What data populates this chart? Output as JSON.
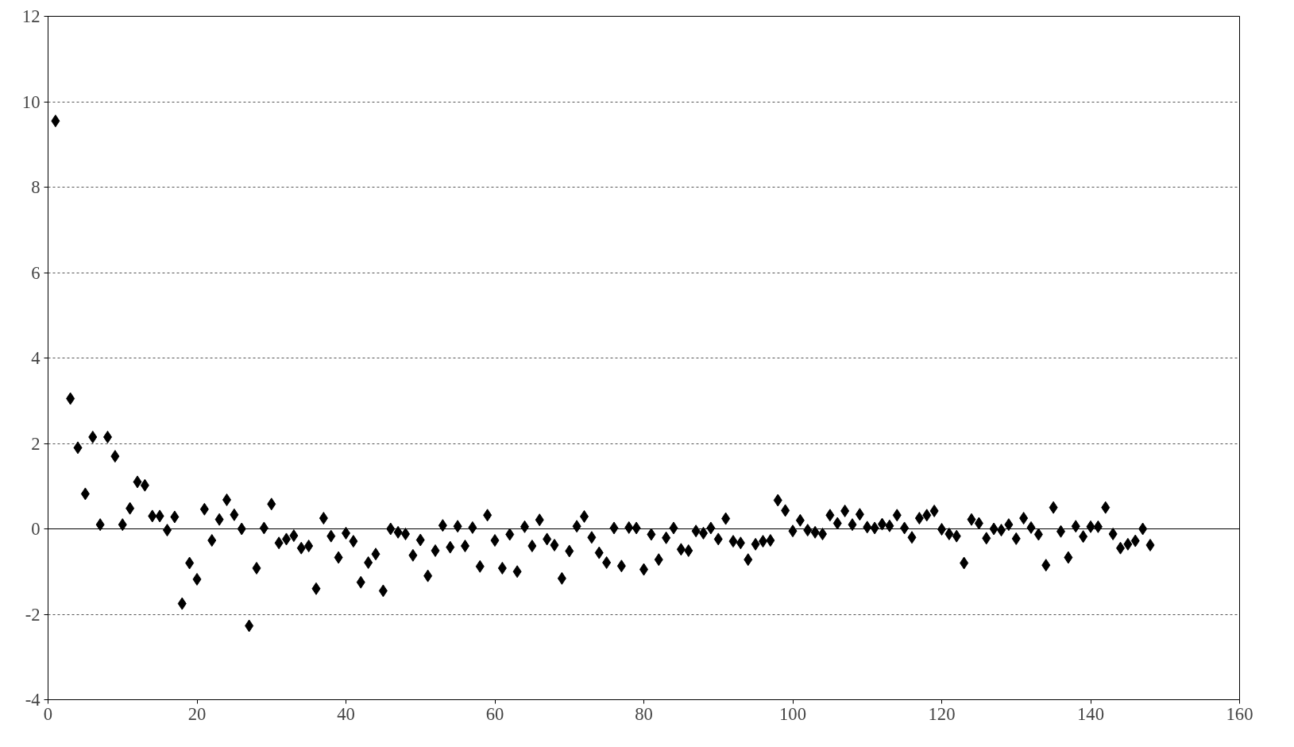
{
  "chart_data": {
    "type": "scatter",
    "marker": "diamond",
    "grid": "y",
    "ref_lines": [
      {
        "axis": "y",
        "value": 0,
        "color": "#000000"
      }
    ],
    "xlim": [
      0,
      160
    ],
    "xticks": [
      0,
      20,
      40,
      60,
      80,
      100,
      120,
      140,
      160
    ],
    "ylim": [
      -4,
      12
    ],
    "yticks": [
      -4,
      -2,
      0,
      2,
      4,
      6,
      8,
      10,
      12
    ],
    "series": [
      {
        "color": "#000000",
        "x": [
          1,
          3,
          4,
          5,
          6,
          7,
          8,
          9,
          10,
          11,
          12,
          13,
          14,
          15,
          16,
          17,
          18,
          19,
          20,
          21,
          22,
          23,
          24,
          25,
          26,
          27,
          28,
          29,
          30,
          31,
          32,
          33,
          34,
          35,
          36,
          37,
          38,
          39,
          40,
          41,
          42,
          43,
          44,
          45,
          46,
          47,
          48,
          49,
          50,
          51,
          52,
          53,
          54,
          55,
          56,
          57,
          58,
          59,
          60,
          61,
          62,
          63,
          64,
          65,
          66,
          67,
          68,
          69,
          70,
          71,
          72,
          73,
          74,
          75,
          76,
          77,
          78,
          79,
          80,
          81,
          82,
          83,
          84,
          85,
          86,
          87,
          88,
          89,
          90,
          91,
          92,
          93,
          94,
          95,
          96,
          97,
          98,
          99,
          100,
          101,
          102,
          103,
          104,
          105,
          106,
          107,
          108,
          109,
          110,
          111,
          112,
          113,
          114,
          115,
          116,
          117,
          118,
          119,
          120,
          121,
          122,
          123,
          124,
          125,
          126,
          127,
          128,
          129,
          130,
          131,
          132,
          133,
          134,
          135,
          136,
          137,
          138,
          139,
          140,
          141,
          142,
          143,
          144,
          145,
          146,
          147,
          148
        ],
        "values": [
          9.55,
          3.05,
          1.9,
          0.82,
          2.15,
          0.1,
          2.15,
          1.7,
          0.1,
          0.48,
          1.1,
          1.02,
          0.3,
          0.3,
          -0.03,
          0.28,
          -1.75,
          -0.8,
          -1.18,
          0.46,
          -0.27,
          0.22,
          0.68,
          0.33,
          0.0,
          -2.27,
          -0.92,
          0.02,
          0.58,
          -0.33,
          -0.24,
          -0.16,
          -0.45,
          -0.4,
          -1.4,
          0.25,
          -0.17,
          -0.67,
          -0.1,
          -0.29,
          -1.25,
          -0.79,
          -0.59,
          -1.45,
          0.0,
          -0.08,
          -0.12,
          -0.62,
          -0.26,
          -1.1,
          -0.51,
          0.08,
          -0.43,
          0.06,
          -0.4,
          0.03,
          -0.88,
          0.32,
          -0.27,
          -0.92,
          -0.13,
          -1.0,
          0.05,
          -0.4,
          0.21,
          -0.24,
          -0.38,
          -1.16,
          -0.52,
          0.06,
          0.29,
          -0.2,
          -0.56,
          -0.79,
          0.02,
          -0.87,
          0.03,
          0.02,
          -0.95,
          -0.13,
          -0.72,
          -0.21,
          0.02,
          -0.48,
          -0.51,
          -0.05,
          -0.1,
          0.02,
          -0.24,
          0.24,
          -0.29,
          -0.33,
          -0.72,
          -0.36,
          -0.29,
          -0.27,
          0.67,
          0.43,
          -0.05,
          0.2,
          -0.03,
          -0.08,
          -0.12,
          0.32,
          0.13,
          0.42,
          0.1,
          0.34,
          0.04,
          0.02,
          0.11,
          0.07,
          0.32,
          0.02,
          -0.2,
          0.25,
          0.32,
          0.42,
          -0.01,
          -0.12,
          -0.17,
          -0.8,
          0.22,
          0.13,
          -0.22,
          0.0,
          -0.03,
          0.1,
          -0.23,
          0.25,
          0.03,
          -0.13,
          -0.85,
          0.5,
          -0.06,
          -0.67,
          0.06,
          -0.18,
          0.05,
          0.05,
          0.5,
          -0.12,
          -0.45,
          -0.36,
          -0.28,
          0.0,
          -0.38
        ]
      }
    ]
  }
}
